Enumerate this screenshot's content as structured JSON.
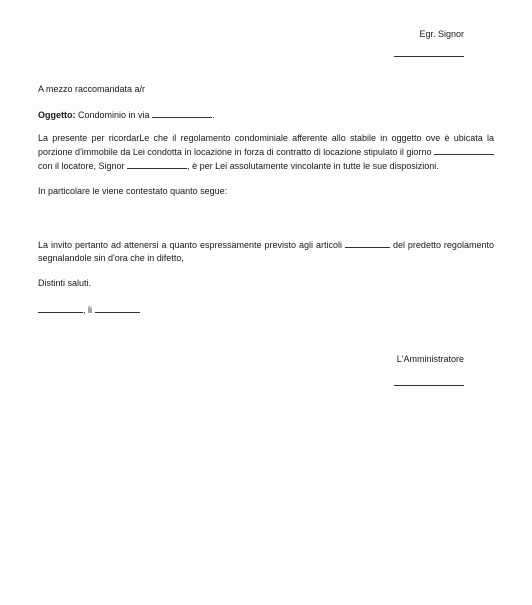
{
  "header": {
    "to_line": "Egr. Signor"
  },
  "intro": {
    "delivery": "A mezzo raccomandata a/r",
    "subject_label": "Oggetto",
    "subject_text": "Condominio in via"
  },
  "body": {
    "p1a": "La presente per ricordarLe che il regolamento condominiale afferente allo stabile in oggetto ove è ubicata la porzione d'immobile da Lei condotta in locazione in forza di contratto di locazione stipulato il giorno",
    "p1b": "con il locatore, Signor",
    "p1c": ", è per Lei assolutamente vincolante in tutte le sue disposizioni.",
    "p2": "In particolare le viene contestato quanto segue:",
    "p3a": "La invito pertanto ad attenersi a quanto espressamente previsto agli articoli",
    "p3b": "del predetto regolamento segnalandole sin d'ora che in difetto,"
  },
  "closing": {
    "greeting": "Distinti saluti.",
    "date_sep": ", li"
  },
  "signature": {
    "label": "L'Amministratore"
  }
}
